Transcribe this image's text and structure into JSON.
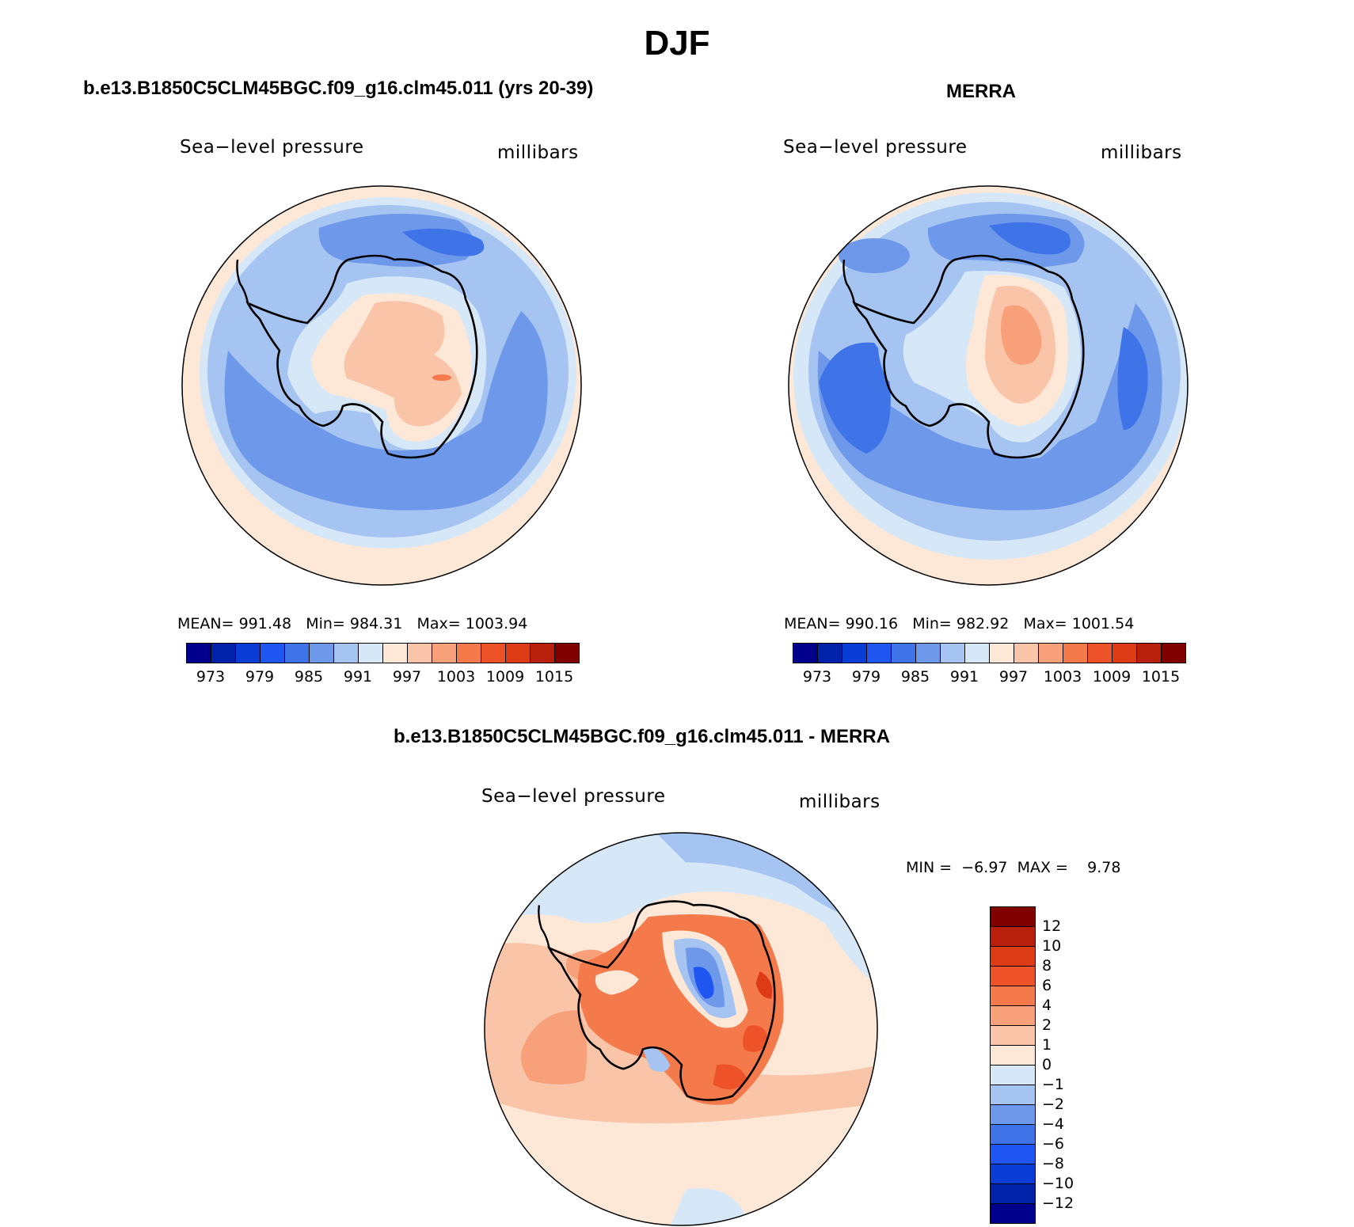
{
  "title": "DJF",
  "panels": [
    {
      "id": "model",
      "title": "b.e13.B1850C5CLM45BGC.f09_g16.clm45.011 (yrs 20-39)",
      "left_label": "Sea−level pressure",
      "right_label": "millibars",
      "stats": {
        "mean_label": "MEAN=",
        "mean": "991.48",
        "min_label": "Min=",
        "min": "984.31",
        "max_label": "Max=",
        "max": "1003.94"
      }
    },
    {
      "id": "merra",
      "title": "MERRA",
      "left_label": "Sea−level pressure",
      "right_label": "millibars",
      "stats": {
        "mean_label": "MEAN=",
        "mean": "990.16",
        "min_label": "Min=",
        "min": "982.92",
        "max_label": "Max=",
        "max": "1001.54"
      }
    },
    {
      "id": "diff",
      "title": "b.e13.B1850C5CLM45BGC.f09_g16.clm45.011 - MERRA",
      "left_label": "Sea−level pressure",
      "right_label": "millibars",
      "stats": {
        "min_label": "MIN =",
        "min": "−6.97",
        "max_label": "MAX =",
        "max": "9.78"
      }
    }
  ],
  "colorbar_abs": {
    "colors": [
      "#00008c",
      "#0022a8",
      "#0a3cd6",
      "#1f55f0",
      "#3f74e8",
      "#6e98ea",
      "#a6c4f2",
      "#d6e8f8",
      "#fde8d8",
      "#f9c4a8",
      "#f7a07a",
      "#f47a4c",
      "#ee5228",
      "#dd3a16",
      "#b8200c",
      "#800000"
    ],
    "labels": [
      "973",
      "979",
      "985",
      "991",
      "997",
      "1003",
      "1009",
      "1015"
    ]
  },
  "colorbar_diff": {
    "colors_top_to_bottom": [
      "#800000",
      "#b8200c",
      "#dd3a16",
      "#ee5228",
      "#f47a4c",
      "#f7a07a",
      "#f9c4a8",
      "#fde8d8",
      "#d6e8f8",
      "#a6c4f2",
      "#6e98ea",
      "#3f74e8",
      "#1f55f0",
      "#0a3cd6",
      "#0022a8",
      "#00008c"
    ],
    "labels": [
      "12",
      "10",
      "8",
      "6",
      "4",
      "2",
      "1",
      "0",
      "−1",
      "−2",
      "−4",
      "−6",
      "−8",
      "−10",
      "−12"
    ]
  }
}
